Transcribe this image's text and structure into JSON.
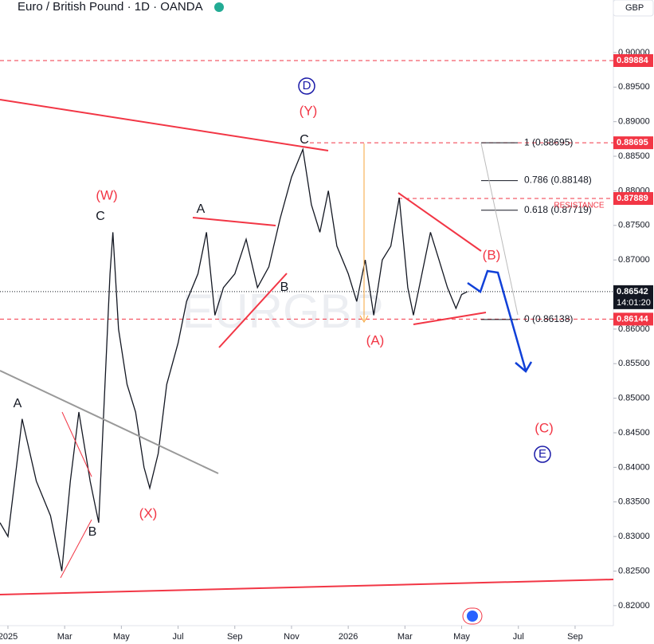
{
  "header": {
    "title": "Euro / British Pound · 1D · OANDA",
    "currency": "GBP"
  },
  "chart_data": {
    "type": "line",
    "watermark": "EURGBP",
    "xlim": [
      -0.28,
      21.35
    ],
    "ylim": [
      0.8171,
      0.9076
    ],
    "xticks": [
      {
        "value": 0,
        "label": "2025"
      },
      {
        "value": 2,
        "label": "Mar"
      },
      {
        "value": 4,
        "label": "May"
      },
      {
        "value": 6,
        "label": "Jul"
      },
      {
        "value": 8,
        "label": "Sep"
      },
      {
        "value": 10,
        "label": "Nov"
      },
      {
        "value": 12,
        "label": "2026"
      },
      {
        "value": 14,
        "label": "Mar"
      },
      {
        "value": 16,
        "label": "May"
      },
      {
        "value": 18,
        "label": "Jul"
      },
      {
        "value": 20,
        "label": "Sep"
      }
    ],
    "yticks": [
      {
        "value": 0.82,
        "label": "0.82000"
      },
      {
        "value": 0.825,
        "label": "0.82500"
      },
      {
        "value": 0.83,
        "label": "0.83000"
      },
      {
        "value": 0.835,
        "label": "0.83500"
      },
      {
        "value": 0.84,
        "label": "0.84000"
      },
      {
        "value": 0.845,
        "label": "0.84500"
      },
      {
        "value": 0.85,
        "label": "0.85000"
      },
      {
        "value": 0.855,
        "label": "0.85500"
      },
      {
        "value": 0.86,
        "label": "0.86000"
      },
      {
        "value": 0.865,
        "label": "0.86500"
      },
      {
        "value": 0.87,
        "label": "0.87000"
      },
      {
        "value": 0.875,
        "label": "0.87500"
      },
      {
        "value": 0.88,
        "label": "0.88000"
      },
      {
        "value": 0.885,
        "label": "0.88500"
      },
      {
        "value": 0.89,
        "label": "0.89000"
      },
      {
        "value": 0.895,
        "label": "0.89500"
      },
      {
        "value": 0.9,
        "label": "0.90000"
      }
    ],
    "series": [
      {
        "name": "EURGBP",
        "color": "#131722",
        "x": [
          -0.28,
          0,
          0.3,
          0.5,
          1,
          1.5,
          1.9,
          2.2,
          2.5,
          2.9,
          3.2,
          3.4,
          3.6,
          3.7,
          3.9,
          4.2,
          4.5,
          4.8,
          5,
          5.3,
          5.6,
          6,
          6.3,
          6.7,
          7,
          7.3,
          7.6,
          8,
          8.4,
          8.8,
          9.2,
          9.6,
          10,
          10.4,
          10.7,
          11,
          11.3,
          11.6,
          12,
          12.3,
          12.6,
          12.9,
          13.2,
          13.5,
          13.8,
          14.1,
          14.3,
          14.6,
          14.9,
          15.2,
          15.5,
          15.8,
          16,
          16.2
        ],
        "values": [
          0.832,
          0.83,
          0.84,
          0.847,
          0.838,
          0.833,
          0.825,
          0.838,
          0.848,
          0.838,
          0.832,
          0.85,
          0.868,
          0.874,
          0.86,
          0.852,
          0.848,
          0.84,
          0.837,
          0.842,
          0.852,
          0.858,
          0.864,
          0.868,
          0.874,
          0.862,
          0.866,
          0.868,
          0.873,
          0.866,
          0.869,
          0.876,
          0.882,
          0.886,
          0.878,
          0.874,
          0.88,
          0.872,
          0.868,
          0.864,
          0.87,
          0.862,
          0.87,
          0.872,
          0.879,
          0.866,
          0.862,
          0.868,
          0.874,
          0.87,
          0.866,
          0.863,
          0.865,
          0.86542
        ]
      }
    ],
    "price_lines": [
      {
        "value": 0.89884,
        "color": "#f23645"
      },
      {
        "value": 0.88695,
        "color": "#f23645"
      },
      {
        "value": 0.87889,
        "color": "#f23645"
      },
      {
        "value": 0.86144,
        "color": "#f23645"
      },
      {
        "value": 0.86542,
        "color": "#131722",
        "countdown": "14:01:20"
      }
    ],
    "fib_levels": [
      {
        "value": 0.88695,
        "label": "1 (0.88695)"
      },
      {
        "value": 0.88148,
        "label": "0.786 (0.88148)"
      },
      {
        "value": 0.87719,
        "label": "0.618 (0.87719)"
      },
      {
        "value": 0.86138,
        "label": "0 (0.86138)"
      }
    ],
    "annotations": [
      {
        "text": "(W)",
        "color": "#f23645"
      },
      {
        "text": "C",
        "color": "#131722"
      },
      {
        "text": "A",
        "color": "#131722"
      },
      {
        "text": "B",
        "color": "#131722"
      },
      {
        "text": "(X)",
        "color": "#f23645"
      },
      {
        "text": "A",
        "color": "#131722"
      },
      {
        "text": "B",
        "color": "#131722"
      },
      {
        "text": "C",
        "color": "#131722"
      },
      {
        "text": "(Y)",
        "color": "#f23645"
      },
      {
        "text": "D",
        "color": "#1a1aa8"
      },
      {
        "text": "(A)",
        "color": "#f23645"
      },
      {
        "text": "(B)",
        "color": "#f23645"
      },
      {
        "text": "(C)",
        "color": "#f23645"
      },
      {
        "text": "E",
        "color": "#1a1aa8"
      },
      {
        "text": "RESISTANCE",
        "color": "#f23645"
      }
    ]
  }
}
